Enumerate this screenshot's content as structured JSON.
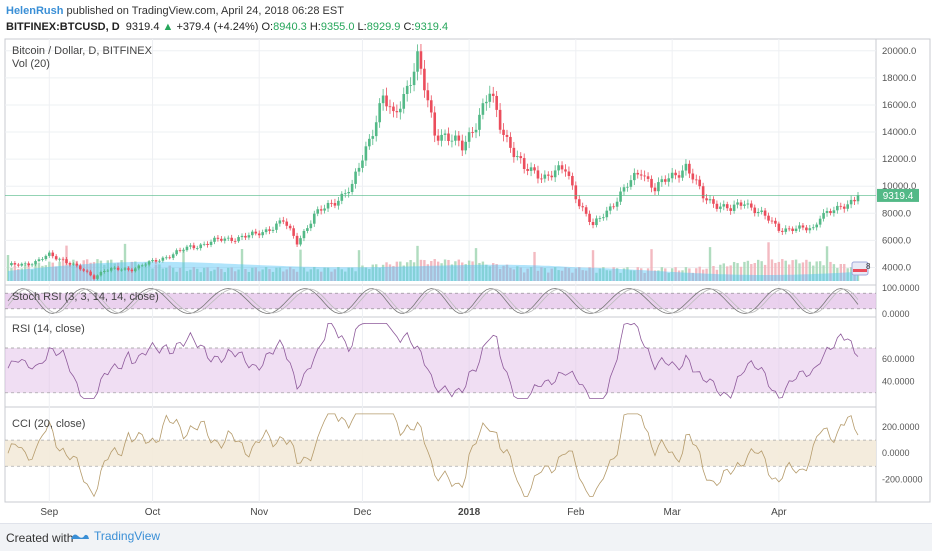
{
  "header": {
    "author": "HelenRush",
    "published": "published on TradingView.com, April 24, 2018 06:28 EST",
    "symbol": "BITFINEX:BTCUSD, D",
    "last": "9319.4",
    "change": "+379.4 (+4.24%)",
    "o_label": "O:",
    "o_value": "8940.3",
    "h_label": "H:",
    "h_value": "9355.0",
    "l_label": "L:",
    "l_value": "8929.9",
    "c_label": "C:",
    "c_value": "9319.4",
    "up_arrow": "▲"
  },
  "panes": {
    "main": {
      "title": "Bitcoin / Dollar, D, BITFINEX",
      "subtitle": "Vol (20)"
    },
    "stoch": {
      "title": "Stoch RSI (3, 3, 14, 14, close)"
    },
    "rsi": {
      "title": "RSI (14, close)"
    },
    "cci": {
      "title": "CCI (20, close)"
    }
  },
  "price_label": "9319.4",
  "x_labels": [
    "Sep",
    "Oct",
    "Nov",
    "Dec",
    "2018",
    "Feb",
    "Mar",
    "Apr"
  ],
  "axis_labels": {
    "price": [
      "20000.0",
      "18000.0",
      "16000.0",
      "14000.0",
      "12000.0",
      "10000.0",
      "8000.0",
      "6000.0",
      "4000.0"
    ],
    "stoch": [
      "100.0000",
      "0.0000"
    ],
    "rsi": [
      "60.0000",
      "40.0000"
    ],
    "cci": [
      "200.0000",
      "0.0000",
      "-200.0000"
    ]
  },
  "badge": "8",
  "footer": {
    "made": "Created with",
    "brand": "TradingView"
  },
  "colors": {
    "up": "#53b987",
    "down": "#eb4d5c",
    "volume": "#4fc3f7",
    "band": "#e1bee7",
    "cci_band": "#f3ead9",
    "accent": "#3a8fd6"
  },
  "chart_data": {
    "type": "candlestick",
    "title": "Bitcoin / Dollar, D, BITFINEX",
    "price_keypoints": [
      [
        "2017-08-20",
        4100
      ],
      [
        "2017-08-28",
        4400
      ],
      [
        "2017-09-01",
        4900
      ],
      [
        "2017-09-05",
        4600
      ],
      [
        "2017-09-14",
        3300
      ],
      [
        "2017-09-17",
        3800
      ],
      [
        "2017-09-25",
        3900
      ],
      [
        "2017-10-01",
        4400
      ],
      [
        "2017-10-12",
        5500
      ],
      [
        "2017-10-20",
        6000
      ],
      [
        "2017-10-31",
        6400
      ],
      [
        "2017-11-08",
        7400
      ],
      [
        "2017-11-12",
        5900
      ],
      [
        "2017-11-17",
        7800
      ],
      [
        "2017-11-28",
        9900
      ],
      [
        "2017-12-07",
        16500
      ],
      [
        "2017-12-10",
        15000
      ],
      [
        "2017-12-17",
        19300
      ],
      [
        "2017-12-22",
        14000
      ],
      [
        "2017-12-25",
        13800
      ],
      [
        "2017-12-30",
        12800
      ],
      [
        "2018-01-07",
        16800
      ],
      [
        "2018-01-10",
        14500
      ],
      [
        "2018-01-17",
        11200
      ],
      [
        "2018-01-23",
        10800
      ],
      [
        "2018-01-29",
        11200
      ],
      [
        "2018-02-02",
        8800
      ],
      [
        "2018-02-06",
        7000
      ],
      [
        "2018-02-10",
        8200
      ],
      [
        "2018-02-20",
        11200
      ],
      [
        "2018-02-24",
        9800
      ],
      [
        "2018-03-05",
        11500
      ],
      [
        "2018-03-10",
        9200
      ],
      [
        "2018-03-18",
        8200
      ],
      [
        "2018-03-22",
        8900
      ],
      [
        "2018-04-01",
        6900
      ],
      [
        "2018-04-07",
        6800
      ],
      [
        "2018-04-11",
        6900
      ],
      [
        "2018-04-13",
        7900
      ],
      [
        "2018-04-18",
        8200
      ],
      [
        "2018-04-24",
        9319.4
      ]
    ],
    "price_range": [
      3000,
      20500
    ],
    "current_price": 9319.4,
    "stoch_range": [
      0,
      100
    ],
    "rsi_range": [
      20,
      95
    ],
    "rsi_bands": [
      30,
      70
    ],
    "cci_range": [
      -350,
      330
    ],
    "cci_bands": [
      -100,
      100
    ]
  }
}
